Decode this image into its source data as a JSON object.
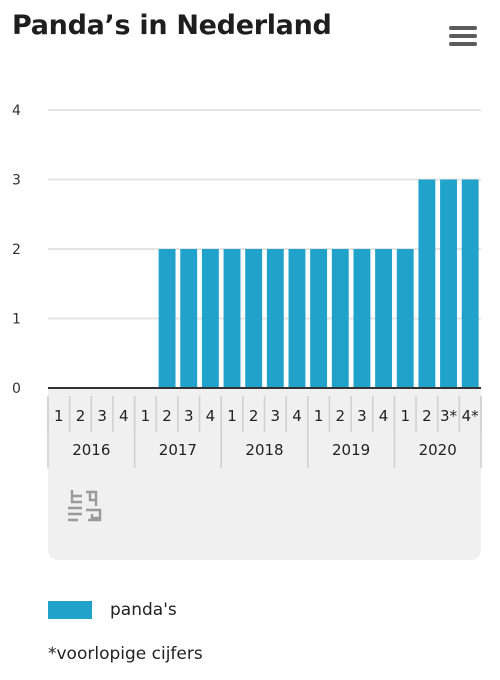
{
  "title": "Panda’s in Nederland",
  "menu_icon": "hamburger-menu-icon",
  "logo_icon": "cbs-logo-icon",
  "legend": {
    "label": "panda's",
    "color": "#20a2cb"
  },
  "footnote": "*voorlopige cijfers",
  "chart_data": {
    "type": "bar",
    "title": "Panda’s in Nederland",
    "xlabel": "",
    "ylabel": "",
    "ylim": [
      0,
      4
    ],
    "yticks": [
      "0",
      "1",
      "2",
      "3",
      "4"
    ],
    "grid": true,
    "legend_position": "bottom-left",
    "categories": [
      "1",
      "2",
      "3",
      "4",
      "1",
      "2",
      "3",
      "4",
      "1",
      "2",
      "3",
      "4",
      "1",
      "2",
      "3",
      "4",
      "1",
      "2",
      "3*",
      "4*"
    ],
    "years": [
      "2016",
      "2017",
      "2018",
      "2019",
      "2020"
    ],
    "series": [
      {
        "name": "panda's",
        "color": "#20a2cb",
        "values": [
          0,
          0,
          0,
          0,
          0,
          2,
          2,
          2,
          2,
          2,
          2,
          2,
          2,
          2,
          2,
          2,
          2,
          3,
          3,
          3
        ]
      }
    ]
  }
}
